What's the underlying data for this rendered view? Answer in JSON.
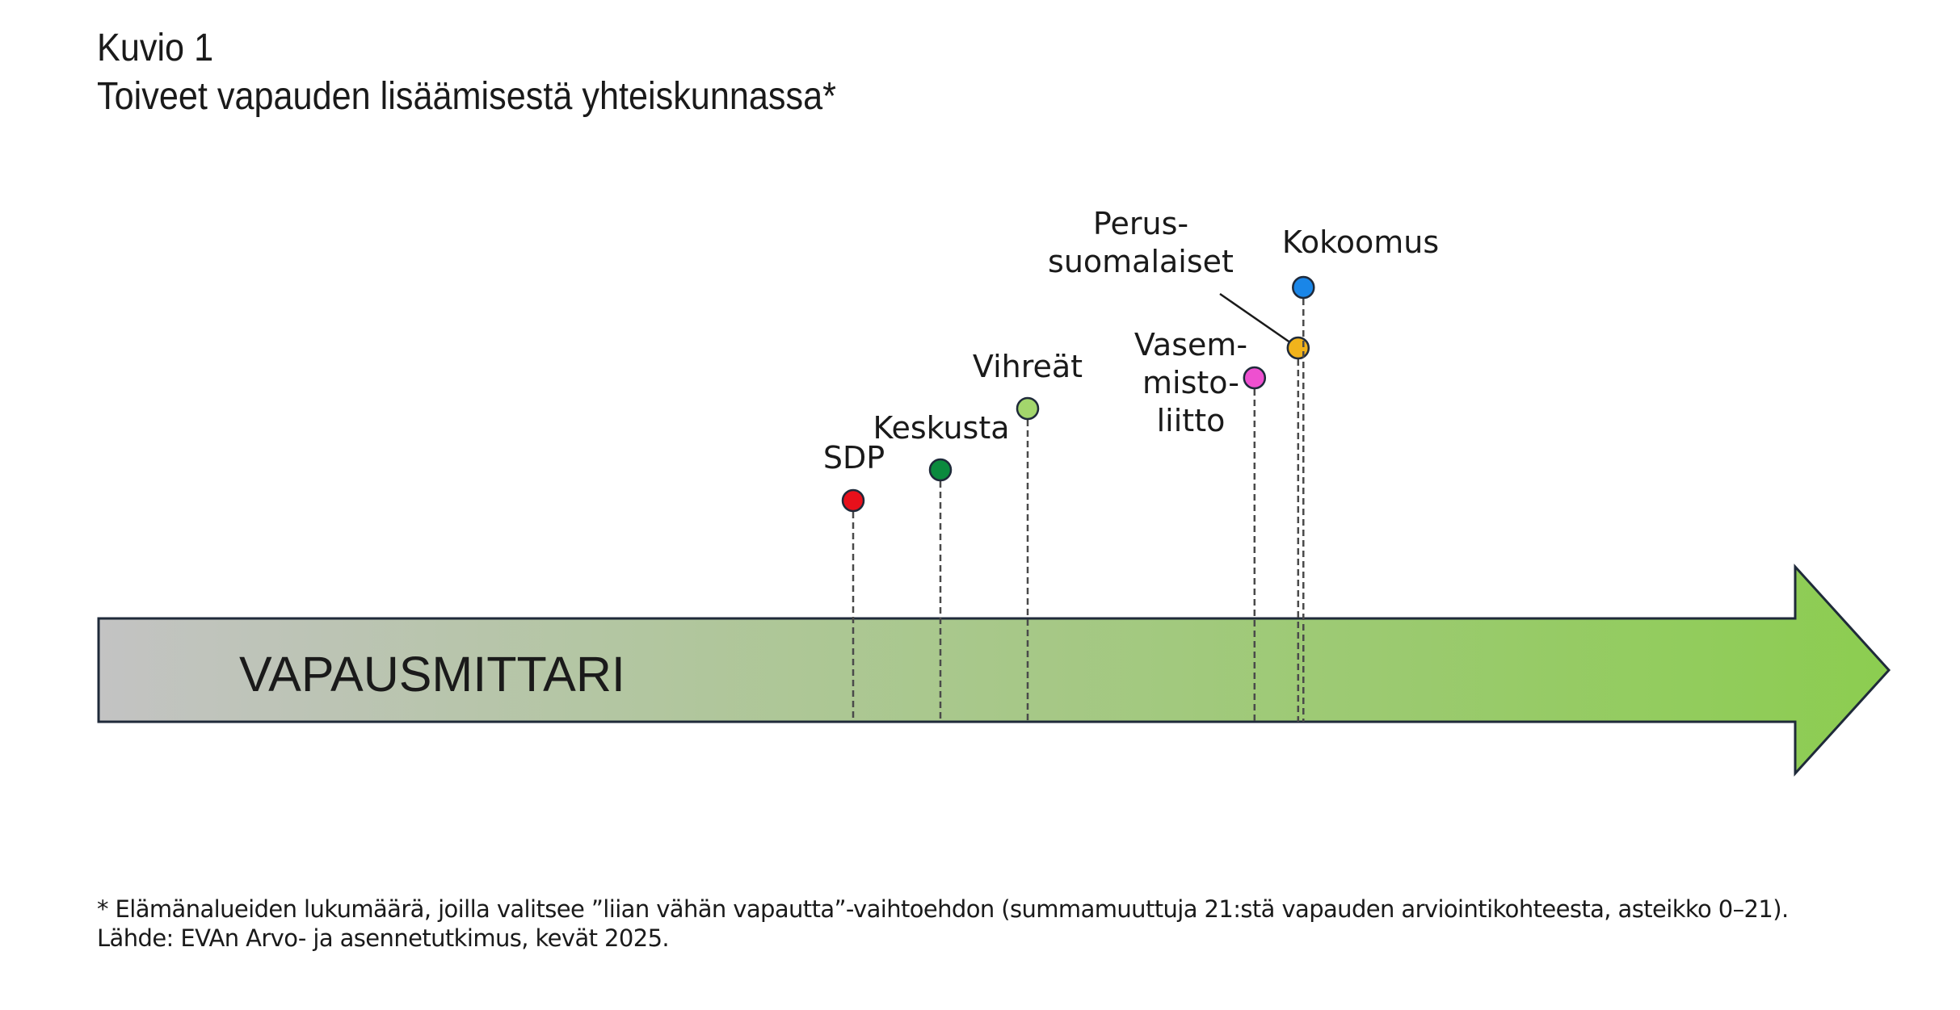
{
  "header": {
    "figure_label": "Kuvio 1",
    "title": "Toiveet vapauden lisäämisestä yhteiskunnassa*"
  },
  "arrow": {
    "label": "VAPAUSMITTARI",
    "gradient_start": "#c3c3c3",
    "gradient_end": "#8ccd50",
    "outline": "#1f2a3a"
  },
  "chart_data": {
    "type": "scatter",
    "title": "Toiveet vapauden lisäämisestä yhteiskunnassa*",
    "xlabel": "VAPAUSMITTARI",
    "ylabel": "",
    "scale": "Elämänalueiden lukumäärä, asteikko 0–21",
    "grid": false,
    "legend": "none",
    "series": [
      {
        "name": "SDP",
        "label_lines": [
          "SDP"
        ],
        "value": 6.6,
        "color": "#e8101b"
      },
      {
        "name": "Keskusta",
        "label_lines": [
          "Keskusta"
        ],
        "value": 7.1,
        "color": "#0b8a3e"
      },
      {
        "name": "Vihreät",
        "label_lines": [
          "Vihreät"
        ],
        "value": 7.6,
        "color": "#a3d66c"
      },
      {
        "name": "Vasemmistoliitto",
        "label_lines": [
          "Vasem-",
          "misto-",
          "liitto"
        ],
        "value": 8.9,
        "color": "#ee50d0"
      },
      {
        "name": "Perussuomalaiset",
        "label_lines": [
          "Perus-",
          "suomalaiset"
        ],
        "value": 9.15,
        "color": "#f1b31c"
      },
      {
        "name": "Kokoomus",
        "label_lines": [
          "Kokoomus"
        ],
        "value": 9.18,
        "color": "#1a86e8"
      }
    ]
  },
  "footnote": {
    "line1": "* Elämänalueiden lukumäärä, joilla valitsee ”liian vähän vapautta”-vaihtoehdon (summamuuttuja 21:stä vapauden arviointikohteesta, asteikko 0–21).",
    "line2": "Lähde: EVAn Arvo- ja asennetutkimus, kevät 2025."
  }
}
